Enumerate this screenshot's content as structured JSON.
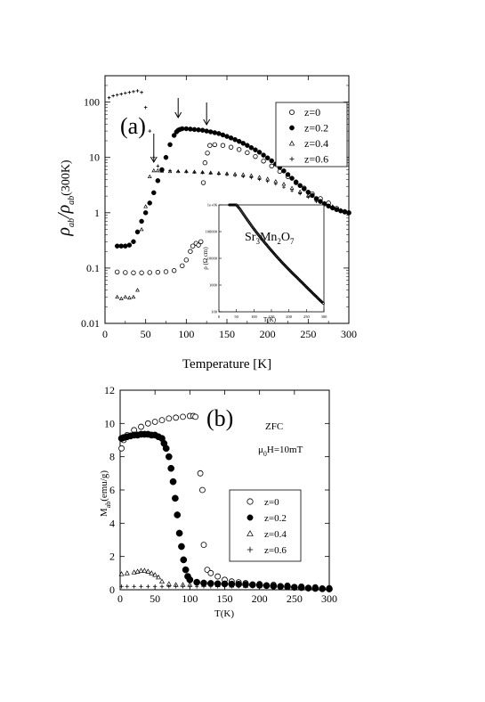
{
  "chart_data": [
    {
      "type": "scatter",
      "panel_label": "(a)",
      "xlabel": "Temperature [K]",
      "ylabel_main": "ρ",
      "ylabel_sub": "ab",
      "ylabel_sep": "/ρ",
      "ylabel_sub2": "ab",
      "ylabel_tail": "(300K)",
      "xlim": [
        0,
        300
      ],
      "ylim": [
        0.01,
        300
      ],
      "yscale": "log",
      "x_ticks": [
        "0",
        "50",
        "100",
        "150",
        "200",
        "250",
        "300"
      ],
      "y_ticks": [
        "0.01",
        "0.1",
        "1",
        "10",
        "100"
      ],
      "legend_position": "top-right",
      "series": [
        {
          "name": "z=0",
          "marker": "open-circle",
          "x": [
            15,
            25,
            35,
            45,
            55,
            65,
            75,
            85,
            95,
            100,
            105,
            108,
            112,
            115,
            118,
            121,
            123,
            126,
            129,
            135,
            145,
            155,
            165,
            175,
            185,
            195,
            205,
            215,
            225,
            235,
            245,
            255,
            265,
            275,
            285,
            295,
            300
          ],
          "y": [
            0.085,
            0.083,
            0.082,
            0.082,
            0.083,
            0.084,
            0.086,
            0.09,
            0.11,
            0.14,
            0.2,
            0.25,
            0.28,
            0.26,
            0.3,
            3.5,
            8,
            12,
            16.5,
            17,
            16.5,
            15.3,
            13.9,
            12.2,
            10.4,
            8.6,
            7,
            5.6,
            4.5,
            3.5,
            2.8,
            2.2,
            1.8,
            1.5,
            1.2,
            1.05,
            1
          ]
        },
        {
          "name": "z=0.2",
          "marker": "filled-circle",
          "x": [
            15,
            20,
            25,
            30,
            35,
            40,
            45,
            50,
            55,
            60,
            65,
            70,
            75,
            80,
            85,
            88,
            90,
            92,
            95,
            100,
            105,
            110,
            115,
            120,
            125,
            130,
            135,
            140,
            145,
            150,
            155,
            160,
            165,
            170,
            175,
            180,
            185,
            190,
            195,
            200,
            205,
            210,
            215,
            220,
            225,
            230,
            235,
            240,
            245,
            250,
            255,
            260,
            265,
            270,
            275,
            280,
            285,
            290,
            295,
            300
          ],
          "y": [
            0.25,
            0.25,
            0.25,
            0.26,
            0.3,
            0.45,
            0.7,
            1,
            1.5,
            2.3,
            3.8,
            6,
            10,
            17,
            25,
            29,
            31,
            32,
            33,
            33,
            32.5,
            32,
            31.5,
            31,
            30,
            29,
            28,
            27,
            25.5,
            24,
            22.5,
            21,
            19.5,
            18,
            16.5,
            15,
            13.7,
            12.4,
            11,
            9.8,
            8.7,
            7.6,
            6.6,
            5.7,
            4.9,
            4.2,
            3.6,
            3.1,
            2.7,
            2.35,
            2.05,
            1.8,
            1.6,
            1.45,
            1.32,
            1.22,
            1.14,
            1.08,
            1.03,
            1
          ]
        },
        {
          "name": "z=0.4",
          "marker": "open-triangle",
          "x": [
            15,
            20,
            25,
            30,
            35,
            40,
            45,
            50,
            55,
            60,
            65,
            70,
            80,
            90,
            100,
            110,
            120,
            130,
            140,
            150,
            160,
            170,
            180,
            190,
            200,
            210,
            220,
            230,
            240,
            250,
            260,
            270,
            280,
            290,
            300
          ],
          "y": [
            0.03,
            0.028,
            0.03,
            0.029,
            0.03,
            0.04,
            0.5,
            1.3,
            4.5,
            5.8,
            5.8,
            5.7,
            5.6,
            5.6,
            5.6,
            5.5,
            5.4,
            5.3,
            5.2,
            5.1,
            5,
            4.9,
            4.7,
            4.4,
            4.1,
            3.7,
            3.3,
            2.8,
            2.4,
            2.05,
            1.75,
            1.5,
            1.3,
            1.12,
            1
          ]
        },
        {
          "name": "z=0.6",
          "marker": "plus",
          "x": [
            5,
            10,
            15,
            20,
            25,
            30,
            35,
            40,
            45,
            50,
            55,
            60,
            65,
            70,
            80,
            90,
            100,
            110,
            120,
            130,
            140,
            150,
            160,
            170,
            180,
            190,
            200,
            210,
            220,
            230,
            240,
            250,
            260,
            270,
            280,
            290,
            300
          ],
          "y": [
            120,
            130,
            135,
            140,
            145,
            150,
            155,
            160,
            150,
            80,
            30,
            10,
            7,
            6,
            5.8,
            5.6,
            5.5,
            5.4,
            5.3,
            5.2,
            5,
            4.9,
            4.7,
            4.5,
            4.3,
            4,
            3.7,
            3.3,
            2.9,
            2.5,
            2.2,
            1.9,
            1.6,
            1.4,
            1.2,
            1.08,
            1
          ]
        }
      ],
      "arrows_at_x": [
        60,
        90,
        125
      ],
      "inset": {
        "label_parts": [
          "Sr",
          "3",
          "Mn",
          "2",
          "O",
          "7"
        ],
        "ylabel": "ρ (Ω cm)",
        "xlabel": "T(K)",
        "xlim": [
          0,
          300
        ],
        "ylim": [
          100,
          1000000
        ],
        "yscale": "log",
        "x_ticks": [
          "0",
          "50",
          "100",
          "150",
          "200",
          "250",
          "300"
        ],
        "y_ticks": [
          "100",
          "1000",
          "10000",
          "100000",
          "1e+06"
        ],
        "series": [
          {
            "name": "Sr3Mn2O7",
            "marker": "open-circle",
            "x": [
              30,
              40,
              50,
              60,
              70,
              80,
              90,
              100,
              110,
              120,
              130,
              140,
              150,
              160,
              170,
              180,
              190,
              200,
              210,
              220,
              230,
              240,
              250,
              260,
              270,
              280,
              290,
              300
            ],
            "y": [
              1000000,
              1000000,
              1000000,
              700000,
              450000,
              290000,
              190000,
              125000,
              85000,
              58000,
              40000,
              28000,
              19500,
              13800,
              9900,
              7100,
              5200,
              3800,
              2800,
              2100,
              1550,
              1150,
              850,
              630,
              470,
              350,
              260,
              200
            ]
          }
        ]
      }
    },
    {
      "type": "scatter",
      "panel_label": "(b)",
      "xlabel": "T(K)",
      "ylabel": "M",
      "ylabel_sub": "ab",
      "ylabel_tail": "(emu/g)",
      "annotation_zfc": "ZFC",
      "annotation_field_parts": [
        "μ",
        "0",
        "H=10mT"
      ],
      "xlim": [
        0,
        300
      ],
      "ylim": [
        0,
        12
      ],
      "x_ticks": [
        "0",
        "50",
        "100",
        "150",
        "200",
        "250",
        "300"
      ],
      "y_ticks": [
        "0",
        "2",
        "4",
        "6",
        "8",
        "10",
        "12"
      ],
      "legend_position": "right",
      "series": [
        {
          "name": "z=0",
          "marker": "open-circle",
          "x": [
            2,
            5,
            10,
            20,
            30,
            40,
            50,
            60,
            70,
            80,
            90,
            100,
            105,
            108,
            115,
            118,
            120,
            125,
            130,
            140,
            150,
            160,
            170,
            180,
            200,
            220,
            240,
            260,
            280,
            300
          ],
          "y": [
            8.5,
            9,
            9.3,
            9.6,
            9.8,
            10,
            10.1,
            10.2,
            10.3,
            10.35,
            10.4,
            10.45,
            10.45,
            10.4,
            7,
            6,
            2.7,
            1.2,
            1,
            0.8,
            0.6,
            0.5,
            0.45,
            0.4,
            0.35,
            0.3,
            0.25,
            0.2,
            0.15,
            0.1
          ]
        },
        {
          "name": "z=0.2",
          "marker": "filled-circle",
          "x": [
            2,
            5,
            10,
            15,
            20,
            25,
            30,
            35,
            40,
            45,
            50,
            55,
            60,
            63,
            66,
            70,
            73,
            76,
            79,
            82,
            85,
            88,
            91,
            94,
            97,
            100,
            110,
            120,
            130,
            140,
            150,
            160,
            170,
            180,
            190,
            200,
            210,
            220,
            230,
            240,
            250,
            260,
            270,
            280,
            290,
            300
          ],
          "y": [
            9.1,
            9.15,
            9.2,
            9.25,
            9.3,
            9.3,
            9.35,
            9.35,
            9.35,
            9.3,
            9.3,
            9.2,
            9.1,
            8.8,
            8.5,
            8,
            7.3,
            6.5,
            5.5,
            4.5,
            3.4,
            2.6,
            1.8,
            1.2,
            0.8,
            0.6,
            0.45,
            0.4,
            0.38,
            0.36,
            0.35,
            0.34,
            0.33,
            0.32,
            0.3,
            0.28,
            0.25,
            0.22,
            0.2,
            0.18,
            0.15,
            0.13,
            0.1,
            0.08,
            0.06,
            0.05
          ]
        },
        {
          "name": "z=0.4",
          "marker": "open-triangle",
          "x": [
            2,
            10,
            20,
            25,
            30,
            35,
            40,
            45,
            50,
            55,
            60,
            70,
            80,
            90,
            100,
            120,
            140,
            160,
            180,
            200,
            220,
            240,
            260,
            280,
            300
          ],
          "y": [
            0.95,
            1,
            1.05,
            1.1,
            1.15,
            1.15,
            1.1,
            1,
            0.9,
            0.75,
            0.5,
            0.35,
            0.3,
            0.3,
            0.3,
            0.3,
            0.28,
            0.26,
            0.24,
            0.22,
            0.2,
            0.17,
            0.14,
            0.1,
            0.07
          ]
        },
        {
          "name": "z=0.6",
          "marker": "plus",
          "x": [
            2,
            10,
            20,
            30,
            40,
            50,
            60,
            70,
            80,
            90,
            100,
            110,
            120,
            130,
            140,
            150,
            160,
            170,
            180,
            190,
            200,
            220,
            240,
            260,
            280,
            300
          ],
          "y": [
            0.2,
            0.2,
            0.2,
            0.2,
            0.2,
            0.2,
            0.2,
            0.2,
            0.2,
            0.2,
            0.2,
            0.2,
            0.2,
            0.2,
            0.2,
            0.2,
            0.2,
            0.2,
            0.2,
            0.2,
            0.2,
            0.2,
            0.2,
            0.2,
            0.2,
            0.2
          ]
        }
      ]
    }
  ]
}
